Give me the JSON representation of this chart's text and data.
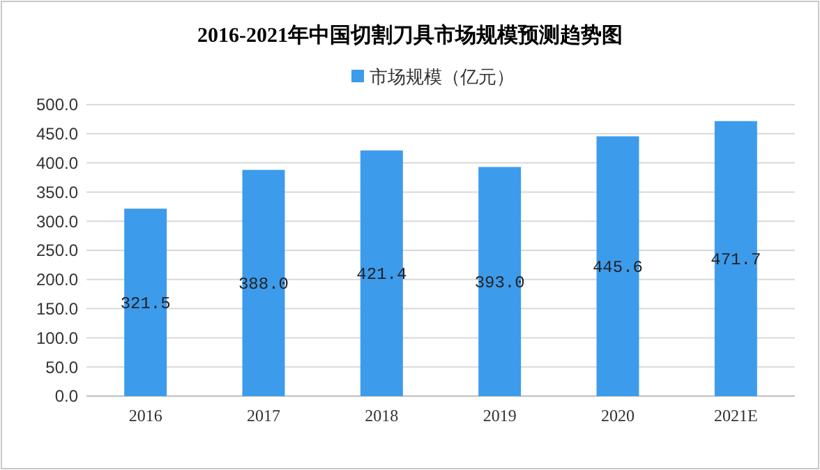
{
  "chart_data": {
    "type": "bar",
    "title": "2016-2021年中国切割刀具市场规模预测趋势图",
    "categories": [
      "2016",
      "2017",
      "2018",
      "2019",
      "2020",
      "2021E"
    ],
    "series": [
      {
        "name": "市场规模（亿元）",
        "color": "#3d9bec",
        "values": [
          321.5,
          388.0,
          421.4,
          393.0,
          445.6,
          471.7
        ]
      }
    ],
    "value_labels": [
      "321.5",
      "388.0",
      "421.4",
      "393.0",
      "445.6",
      "471.7"
    ],
    "ylim": [
      0,
      500
    ],
    "yticks": [
      {
        "value": 0,
        "label": "0.0"
      },
      {
        "value": 50,
        "label": "50.0"
      },
      {
        "value": 100,
        "label": "100.0"
      },
      {
        "value": 150,
        "label": "150.0"
      },
      {
        "value": 200,
        "label": "200.0"
      },
      {
        "value": 250,
        "label": "250.0"
      },
      {
        "value": 300,
        "label": "300.0"
      },
      {
        "value": 350,
        "label": "350.0"
      },
      {
        "value": 400,
        "label": "400.0"
      },
      {
        "value": 450,
        "label": "450.0"
      },
      {
        "value": 500,
        "label": "500.0"
      }
    ],
    "grid": "y",
    "legend": "top"
  }
}
